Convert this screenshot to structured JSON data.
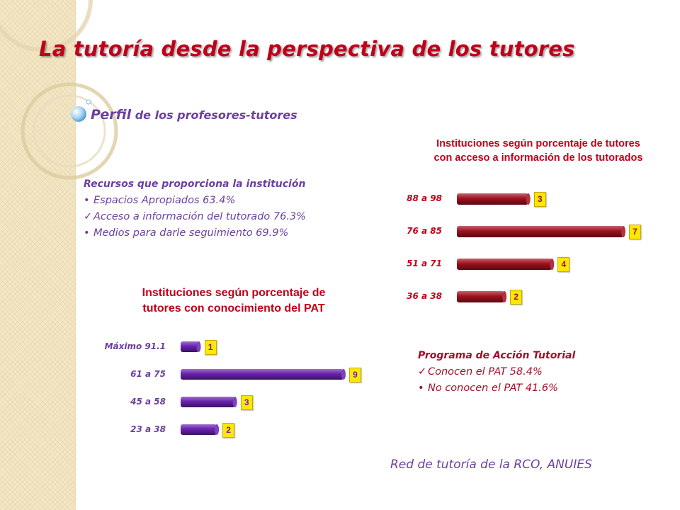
{
  "slide": {
    "title": "La tutoría desde la perspectiva de los tutores",
    "subtitle_main": "Perfil",
    "subtitle_rest": " de los profesores-tutores",
    "footer": "Red de tutoría de la RCO, ANUIES"
  },
  "resources": {
    "heading": "Recursos que proporciona  la institución",
    "items": [
      {
        "marker": "•",
        "text": "Espacios Apropiados 63.4%"
      },
      {
        "marker": "✓",
        "text": "Acceso a información del tutorado 76.3%"
      },
      {
        "marker": "•",
        "text": "Medios para darle seguimiento 69.9%"
      }
    ]
  },
  "program": {
    "heading": "Programa  de Acción Tutorial",
    "items": [
      {
        "marker": "✓",
        "text": "Conocen el PAT 58.4%"
      },
      {
        "marker": "•",
        "text": "No conocen el PAT 41.6%"
      }
    ]
  },
  "chart_data": [
    {
      "type": "bar",
      "orientation": "horizontal",
      "title": "Instituciones según porcentaje de tutores con acceso a información de los tutorados",
      "title_lines": [
        "Instituciones según porcentaje de tutores",
        "con acceso a información de los tutorados"
      ],
      "categories": [
        "88  a  98",
        "76  a  85",
        "51  a  71",
        "36  a  38"
      ],
      "values": [
        3,
        7,
        4,
        2
      ],
      "xlim": [
        0,
        7
      ],
      "bar_color": "#a0101e",
      "label_color": "#c0001a",
      "grid": false,
      "legend": "none"
    },
    {
      "type": "bar",
      "orientation": "horizontal",
      "title": "Instituciones según porcentaje de tutores con conocimiento del PAT",
      "title_lines": [
        "Instituciones según porcentaje de",
        "tutores con conocimiento del PAT"
      ],
      "categories": [
        "Máximo  91.1",
        "61  a  75",
        "45  a  58",
        "23  a 38"
      ],
      "values": [
        1,
        9,
        3,
        2
      ],
      "xlim": [
        0,
        9
      ],
      "bar_color": "#6a22b0",
      "label_color": "#6b3fa0",
      "grid": false,
      "legend": "none"
    }
  ]
}
